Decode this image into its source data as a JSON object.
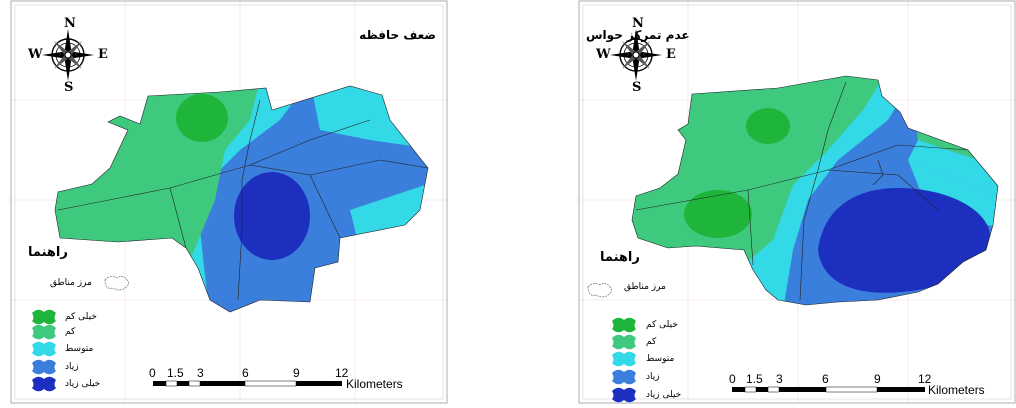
{
  "maps": [
    {
      "title": "ضعف حافظه",
      "legend_title": "راهنما",
      "boundary_label": "مرز مناطق",
      "legend_items": [
        {
          "label": "خیلی کم",
          "color": "#1fb53a"
        },
        {
          "label": "کم",
          "color": "#3ec97f"
        },
        {
          "label": "متوسط",
          "color": "#33d9e6"
        },
        {
          "label": "زیاد",
          "color": "#3a7fdc"
        },
        {
          "label": "خیلی زیاد",
          "color": "#1c2fbf"
        }
      ],
      "scale": {
        "ticks": [
          "0",
          "1.5",
          "3",
          "6",
          "9",
          "12"
        ],
        "unit": "Kilometers"
      }
    },
    {
      "title": "عدم تمرکز حواس",
      "legend_title": "راهنما",
      "boundary_label": "مرز مناطق",
      "legend_items": [
        {
          "label": "خیلی کم",
          "color": "#1fb53a"
        },
        {
          "label": "کم",
          "color": "#3ec97f"
        },
        {
          "label": "متوسط",
          "color": "#33d9e6"
        },
        {
          "label": "زیاد",
          "color": "#3a7fdc"
        },
        {
          "label": "خیلی زیاد",
          "color": "#1c2fbf"
        }
      ],
      "scale": {
        "ticks": [
          "0",
          "1.5",
          "3",
          "6",
          "9",
          "12"
        ],
        "unit": "Kilometers"
      }
    }
  ],
  "compass": {
    "n": "N",
    "s": "S",
    "e": "E",
    "w": "W"
  }
}
